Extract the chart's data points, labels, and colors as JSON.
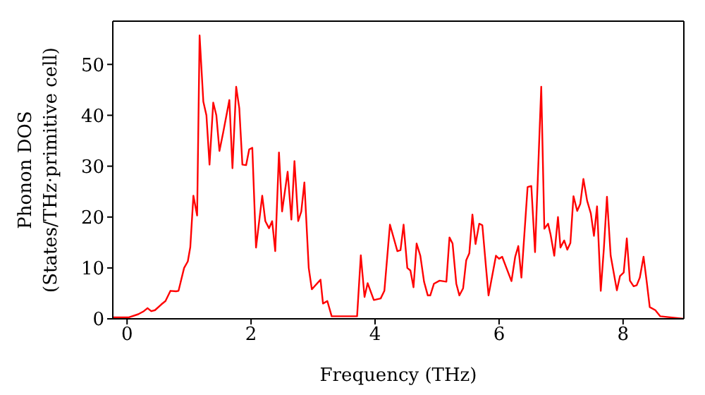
{
  "chart_data": {
    "type": "line",
    "xlabel": "Frequency (THz)",
    "ylabel": "Phonon DOS\n(States/THz·primitive cell)",
    "x": [
      -0.23,
      0.03,
      0.18,
      0.27,
      0.33,
      0.39,
      0.45,
      0.55,
      0.62,
      0.7,
      0.79,
      0.83,
      0.92,
      0.98,
      1.02,
      1.07,
      1.13,
      1.17,
      1.23,
      1.28,
      1.33,
      1.39,
      1.44,
      1.49,
      1.55,
      1.65,
      1.7,
      1.76,
      1.81,
      1.86,
      1.92,
      1.97,
      2.02,
      2.08,
      2.18,
      2.23,
      2.29,
      2.34,
      2.39,
      2.45,
      2.5,
      2.59,
      2.65,
      2.7,
      2.76,
      2.81,
      2.86,
      2.93,
      2.98,
      3.12,
      3.16,
      3.23,
      3.3,
      3.71,
      3.77,
      3.83,
      3.88,
      3.98,
      4.09,
      4.15,
      4.24,
      4.36,
      4.41,
      4.46,
      4.52,
      4.57,
      4.62,
      4.67,
      4.73,
      4.79,
      4.85,
      4.89,
      4.95,
      5.04,
      5.15,
      5.2,
      5.25,
      5.31,
      5.36,
      5.42,
      5.47,
      5.52,
      5.57,
      5.62,
      5.68,
      5.73,
      5.79,
      5.83,
      5.95,
      6.0,
      6.05,
      6.2,
      6.26,
      6.31,
      6.36,
      6.46,
      6.52,
      6.58,
      6.68,
      6.73,
      6.79,
      6.83,
      6.89,
      6.95,
      6.99,
      7.05,
      7.1,
      7.15,
      7.2,
      7.26,
      7.31,
      7.36,
      7.42,
      7.48,
      7.53,
      7.58,
      7.64,
      7.69,
      7.74,
      7.8,
      7.9,
      7.95,
      8.01,
      8.06,
      8.11,
      8.17,
      8.22,
      8.27,
      8.33,
      8.38,
      8.43,
      8.52,
      8.6,
      8.98
    ],
    "series": [
      {
        "color": "#ff0000",
        "values": [
          0.3,
          0.3,
          0.9,
          1.5,
          2.1,
          1.5,
          1.7,
          2.8,
          3.5,
          5.5,
          5.4,
          5.5,
          10,
          11.3,
          14.1,
          24.2,
          20.3,
          55.7,
          42.7,
          40,
          30.3,
          42.5,
          40,
          33,
          36.6,
          43,
          29.6,
          45.6,
          41.4,
          30.3,
          30.2,
          33.3,
          33.6,
          14,
          24.2,
          19.2,
          17.8,
          19.2,
          13.3,
          32.7,
          21.1,
          28.9,
          19.5,
          31,
          19.2,
          21.1,
          26.8,
          10,
          5.8,
          7.7,
          3,
          3.5,
          0.5,
          0.5,
          12.5,
          4.3,
          7,
          3.7,
          4,
          5.5,
          18.5,
          13.3,
          13.5,
          18.5,
          10,
          9.5,
          6.2,
          14.8,
          12.4,
          7.3,
          4.6,
          4.6,
          6.9,
          7.5,
          7.3,
          16,
          14.8,
          6.9,
          4.6,
          6,
          11.5,
          12.9,
          20.5,
          14.7,
          18.7,
          18.4,
          10,
          4.6,
          12.4,
          11.8,
          12.2,
          7.4,
          12.2,
          14.3,
          8.1,
          25.9,
          26.1,
          13.1,
          45.6,
          17.7,
          18.7,
          16.6,
          12.4,
          20,
          14,
          15.4,
          13.6,
          14.9,
          24.1,
          21.2,
          22.6,
          27.5,
          23.2,
          20.7,
          16.3,
          22.1,
          5.5,
          13.8,
          24,
          12.4,
          5.6,
          8.4,
          9.1,
          15.8,
          7.5,
          6.4,
          6.6,
          8.1,
          12.2,
          7.4,
          2.3,
          1.7,
          0.5,
          0
        ]
      }
    ],
    "xlim": [
      -0.23,
      8.98
    ],
    "xticks": [
      0,
      2,
      4,
      6,
      8
    ],
    "ylim": [
      0,
      58.5
    ],
    "yticks": [
      0,
      10,
      20,
      30,
      40,
      50
    ],
    "grid": false,
    "legend": false,
    "marker": "none",
    "line_style": "solid"
  }
}
